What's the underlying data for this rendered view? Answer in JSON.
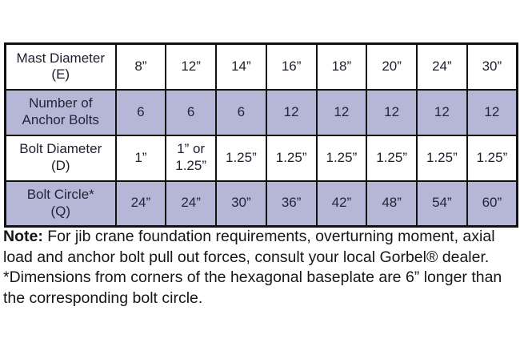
{
  "table": {
    "shade_color": "#b6b6d6",
    "border_color": "#121212",
    "rows": [
      {
        "header_lines": [
          "Mast Diameter",
          "(E)"
        ],
        "values": [
          "8”",
          "12”",
          "14”",
          "16”",
          "18”",
          "20”",
          "24”",
          "30”"
        ],
        "shaded": false
      },
      {
        "header_lines": [
          "Number of",
          "Anchor Bolts"
        ],
        "values": [
          "6",
          "6",
          "6",
          "12",
          "12",
          "12",
          "12",
          "12"
        ],
        "shaded": true
      },
      {
        "header_lines": [
          "Bolt Diameter",
          "(D)"
        ],
        "values": [
          "1”",
          "1” or 1.25”",
          "1.25”",
          "1.25”",
          "1.25”",
          "1.25”",
          "1.25”",
          "1.25”"
        ],
        "shaded": false
      },
      {
        "header_lines": [
          "Bolt Circle*",
          "(Q)"
        ],
        "values": [
          "24”",
          "24”",
          "30”",
          "36”",
          "42”",
          "48”",
          "54”",
          "60”"
        ],
        "shaded": true
      }
    ]
  },
  "note": {
    "bold_label": "Note:",
    "line1_rest": " For jib crane foundation requirements, overturning moment, axial",
    "lines_rest": [
      "load and anchor bolt pull out forces, consult your local Gorbel® dealer.",
      "*Dimensions from corners of the hexagonal baseplate are 6” longer than",
      "the corresponding bolt circle."
    ]
  }
}
